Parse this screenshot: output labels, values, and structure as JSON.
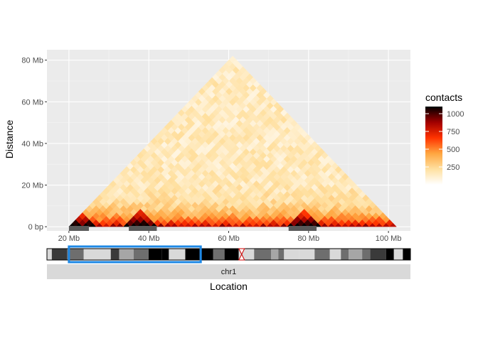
{
  "chart_data": {
    "type": "heatmap",
    "title": "",
    "xlabel": "Location",
    "ylabel": "Distance",
    "x_unit": "Mb",
    "xlim": [
      14.5,
      105.5
    ],
    "ylim": [
      -2,
      85
    ],
    "x_ticks": [
      {
        "value": 20,
        "label": "20 Mb"
      },
      {
        "value": 40,
        "label": "40 Mb"
      },
      {
        "value": 60,
        "label": "60 Mb"
      },
      {
        "value": 80,
        "label": "80 Mb"
      },
      {
        "value": 100,
        "label": "100 Mb"
      }
    ],
    "y_ticks": [
      {
        "value": 0,
        "label": "0 bp"
      },
      {
        "value": 20,
        "label": "20 Mb"
      },
      {
        "value": 40,
        "label": "40 Mb"
      },
      {
        "value": 60,
        "label": "60 Mb"
      },
      {
        "value": 80,
        "label": "80 Mb"
      }
    ],
    "region": {
      "start": 20,
      "end": 102
    },
    "tad_domains": [
      {
        "start": 20,
        "end": 25
      },
      {
        "start": 35,
        "end": 42
      },
      {
        "start": 75,
        "end": 82
      }
    ],
    "legend": {
      "title": "contacts",
      "breaks": [
        {
          "value": 250,
          "label": "250"
        },
        {
          "value": 500,
          "label": "500"
        },
        {
          "value": 750,
          "label": "750"
        },
        {
          "value": 1000,
          "label": "1000"
        }
      ],
      "range": [
        0,
        1100
      ],
      "colors": [
        "#ffffff",
        "#ffe0a0",
        "#ffa640",
        "#ff3300",
        "#a00000",
        "#000000"
      ]
    },
    "ideogram": {
      "chromosome_label": "chr1",
      "highlight": {
        "start_mb": 20,
        "end_mb": 53,
        "color": "#1e88e5"
      },
      "centromere_mb": 60,
      "chrom_length_mb": 112
    },
    "colors": {
      "panel_bg": "#ebebeb",
      "grid_major": "#ffffff",
      "strip_bg": "#d9d9d9",
      "domain_bar": "#595959"
    }
  }
}
